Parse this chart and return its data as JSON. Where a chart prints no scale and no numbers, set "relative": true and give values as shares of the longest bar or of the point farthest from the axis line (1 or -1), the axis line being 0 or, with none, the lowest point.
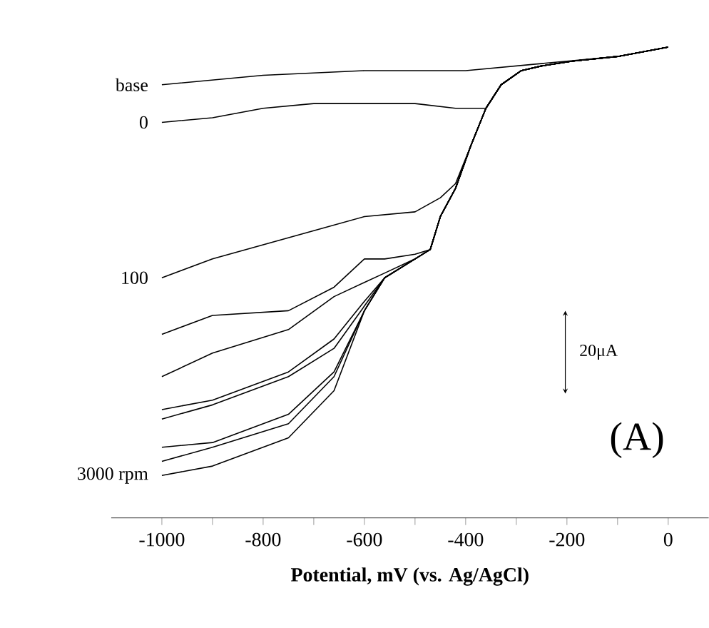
{
  "chart_data": {
    "type": "line",
    "relative": true,
    "xlabel": "Potential, mV (vs. Ag/AgCl)",
    "xlim": [
      -1100,
      80
    ],
    "xticks": [
      -1000,
      {
        "value": -900,
        "label": null
      },
      -800,
      {
        "value": -700,
        "label": null
      },
      -600,
      {
        "value": -500,
        "label": null
      },
      -400,
      {
        "value": -300,
        "label": null
      },
      -200,
      {
        "value": -100,
        "label": null
      },
      0
    ],
    "annotations": [
      "20μA",
      "(A)"
    ],
    "series": [
      {
        "name": "base",
        "color": "#000000",
        "x": [
          -1000,
          -800,
          -600,
          -400,
          -200,
          -100,
          0
        ],
        "values": [
          0.92,
          0.94,
          0.95,
          0.95,
          0.97,
          0.98,
          1.0
        ]
      },
      {
        "name": "0",
        "color": "#000000",
        "x": [
          -1000,
          -900,
          -800,
          -700,
          -600,
          -500,
          -420,
          -360,
          -330,
          -290,
          -250,
          -190,
          -100,
          0
        ],
        "values": [
          0.84,
          0.85,
          0.87,
          0.88,
          0.88,
          0.88,
          0.87,
          0.87,
          0.92,
          0.95,
          0.96,
          0.97,
          0.98,
          1.0
        ]
      },
      {
        "name": "100",
        "color": "#000000",
        "x": [
          -1000,
          -900,
          -800,
          -700,
          -600,
          -500,
          -450,
          -420,
          -390,
          -360,
          -330,
          -290,
          -250,
          -190,
          -100,
          0
        ],
        "values": [
          0.51,
          0.55,
          0.58,
          0.61,
          0.64,
          0.65,
          0.68,
          0.71,
          0.79,
          0.87,
          0.92,
          0.95,
          0.96,
          0.97,
          0.98,
          1.0
        ]
      },
      {
        "color": "#000000",
        "x": [
          -1000,
          -900,
          -750,
          -660,
          -600,
          -560,
          -500,
          -470,
          -450,
          -420,
          -390,
          -360,
          -330,
          -290,
          -250,
          -190,
          -100,
          0
        ],
        "values": [
          0.39,
          0.43,
          0.44,
          0.49,
          0.55,
          0.55,
          0.56,
          0.57,
          0.64,
          0.7,
          0.79,
          0.87,
          0.92,
          0.95,
          0.96,
          0.97,
          0.98,
          1.0
        ]
      },
      {
        "color": "#000000",
        "x": [
          -1000,
          -900,
          -750,
          -660,
          -600,
          -560,
          -500,
          -470,
          -450,
          -420,
          -390,
          -360,
          -330,
          -290,
          -250,
          -190,
          -100,
          0
        ],
        "values": [
          0.3,
          0.35,
          0.4,
          0.47,
          0.5,
          0.52,
          0.55,
          0.57,
          0.64,
          0.7,
          0.79,
          0.87,
          0.92,
          0.95,
          0.96,
          0.97,
          0.98,
          1.0
        ]
      },
      {
        "color": "#000000",
        "x": [
          -1000,
          -900,
          -750,
          -660,
          -600,
          -560,
          -500,
          -470,
          -450,
          -420,
          -390,
          -360,
          -330,
          -290,
          -250,
          -190,
          -100,
          0
        ],
        "values": [
          0.23,
          0.25,
          0.31,
          0.38,
          0.46,
          0.51,
          0.55,
          0.57,
          0.64,
          0.7,
          0.79,
          0.87,
          0.92,
          0.95,
          0.96,
          0.97,
          0.98,
          1.0
        ]
      },
      {
        "color": "#000000",
        "x": [
          -1000,
          -900,
          -750,
          -660,
          -600,
          -560,
          -500,
          -470,
          -450,
          -420,
          -390,
          -360,
          -330,
          -290,
          -250,
          -190,
          -100,
          0
        ],
        "values": [
          0.21,
          0.24,
          0.3,
          0.36,
          0.45,
          0.51,
          0.55,
          0.57,
          0.64,
          0.7,
          0.79,
          0.87,
          0.92,
          0.95,
          0.96,
          0.97,
          0.98,
          1.0
        ]
      },
      {
        "color": "#000000",
        "x": [
          -1000,
          -900,
          -750,
          -660,
          -600,
          -560,
          -500,
          -470,
          -450,
          -420,
          -390,
          -360,
          -330,
          -290,
          -250,
          -190,
          -100,
          0
        ],
        "values": [
          0.15,
          0.16,
          0.22,
          0.31,
          0.44,
          0.51,
          0.55,
          0.57,
          0.64,
          0.7,
          0.79,
          0.87,
          0.92,
          0.95,
          0.96,
          0.97,
          0.98,
          1.0
        ]
      },
      {
        "color": "#000000",
        "x": [
          -1000,
          -900,
          -750,
          -660,
          -600,
          -560,
          -500,
          -470,
          -450,
          -420,
          -390,
          -360,
          -330,
          -290,
          -250,
          -190,
          -100,
          0
        ],
        "values": [
          0.12,
          0.15,
          0.2,
          0.3,
          0.44,
          0.51,
          0.55,
          0.57,
          0.64,
          0.7,
          0.79,
          0.87,
          0.92,
          0.95,
          0.96,
          0.97,
          0.98,
          1.0
        ]
      },
      {
        "name": "3000 rpm",
        "color": "#000000",
        "x": [
          -1000,
          -900,
          -750,
          -660,
          -600,
          -560,
          -500,
          -470,
          -450,
          -420,
          -390,
          -360,
          -330,
          -290,
          -250,
          -190,
          -100,
          0
        ],
        "values": [
          0.09,
          0.11,
          0.17,
          0.27,
          0.44,
          0.51,
          0.55,
          0.57,
          0.64,
          0.7,
          0.79,
          0.87,
          0.92,
          0.95,
          0.96,
          0.97,
          0.98,
          1.0
        ]
      }
    ]
  }
}
